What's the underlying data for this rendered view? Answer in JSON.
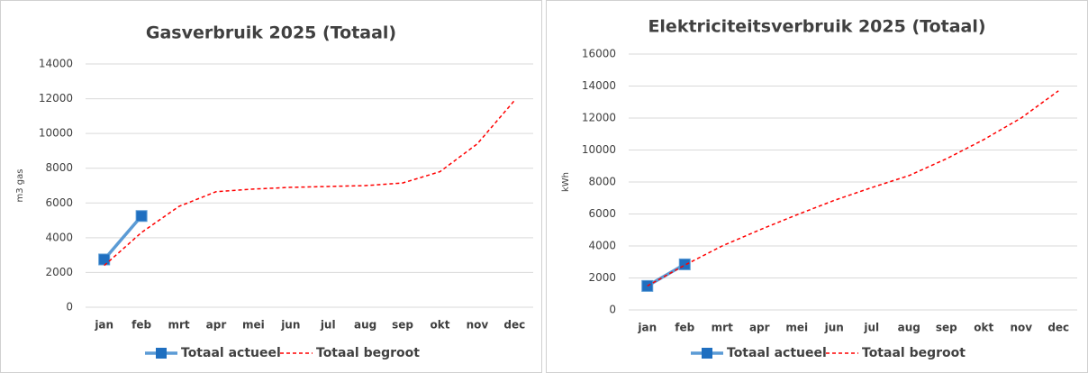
{
  "chart_data": [
    {
      "type": "line",
      "title": "Gasverbruik 2025 (Totaal)",
      "y_label": "m3 gas",
      "categories": [
        "jan",
        "feb",
        "mrt",
        "apr",
        "mei",
        "jun",
        "jul",
        "aug",
        "sep",
        "okt",
        "nov",
        "dec"
      ],
      "series": [
        {
          "name": "Totaal actueel",
          "color": "#5b9bd5",
          "marker": "square",
          "marker_color": "#1f6fc0",
          "dashed": false,
          "values": [
            2750,
            5250,
            null,
            null,
            null,
            null,
            null,
            null,
            null,
            null,
            null,
            null
          ]
        },
        {
          "name": "Totaal begroot",
          "color": "#ff0000",
          "marker": "none",
          "dashed": true,
          "values": [
            2400,
            4300,
            5800,
            6650,
            6800,
            6900,
            6950,
            7000,
            7150,
            7800,
            9400,
            11900
          ]
        }
      ],
      "ylim": [
        0,
        14000
      ],
      "yticks": [
        0,
        2000,
        4000,
        6000,
        8000,
        10000,
        12000,
        14000
      ],
      "grid": true,
      "legend": "bottom"
    },
    {
      "type": "line",
      "title": "Elektriciteitsverbruik 2025 (Totaal)",
      "y_label": "kWh",
      "categories": [
        "jan",
        "feb",
        "mrt",
        "apr",
        "mei",
        "jun",
        "jul",
        "aug",
        "sep",
        "okt",
        "nov",
        "dec"
      ],
      "series": [
        {
          "name": "Totaal actueel",
          "color": "#5b9bd5",
          "marker": "square",
          "marker_color": "#1f6fc0",
          "dashed": false,
          "values": [
            1500,
            2850,
            null,
            null,
            null,
            null,
            null,
            null,
            null,
            null,
            null,
            null
          ]
        },
        {
          "name": "Totaal begroot",
          "color": "#ff0000",
          "marker": "none",
          "dashed": true,
          "values": [
            1500,
            2800,
            4000,
            5000,
            5950,
            6850,
            7650,
            8400,
            9450,
            10650,
            12000,
            13700
          ]
        }
      ],
      "ylim": [
        0,
        16000
      ],
      "yticks": [
        0,
        2000,
        4000,
        6000,
        8000,
        10000,
        12000,
        14000,
        16000
      ],
      "grid": true,
      "legend": "bottom"
    }
  ]
}
